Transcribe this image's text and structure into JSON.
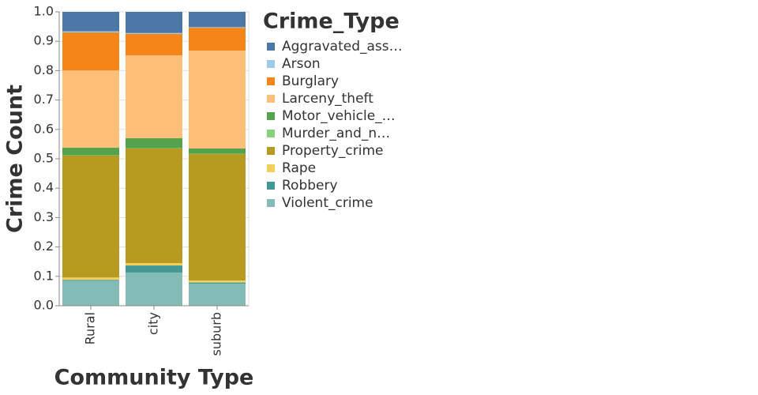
{
  "chart_data": {
    "type": "bar",
    "stacked": true,
    "x_label": "Community Type",
    "y_label": "Crime Count",
    "legend_title": "Crime_Type",
    "legend_position": "right",
    "grid": true,
    "categories": [
      "Rural",
      "city",
      "suburb"
    ],
    "ylim": [
      0,
      1
    ],
    "yticks": [
      {
        "value": 0,
        "label": "0.0"
      },
      0.1,
      0.2,
      0.3,
      0.4,
      0.5,
      0.6,
      0.7,
      0.8,
      0.9,
      {
        "value": 1,
        "label": "1.0"
      }
    ],
    "series": [
      {
        "name": "Aggravated_ass…",
        "color": "#4c78a8",
        "values": [
          0.066,
          0.072,
          0.052
        ]
      },
      {
        "name": "Arson",
        "color": "#9ecae9",
        "values": [
          0.004,
          0.003,
          0.002
        ]
      },
      {
        "name": "Burglary",
        "color": "#f58518",
        "values": [
          0.129,
          0.073,
          0.078
        ]
      },
      {
        "name": "Larceny_theft",
        "color": "#ffbf79",
        "values": [
          0.263,
          0.282,
          0.333
        ]
      },
      {
        "name": "Motor_vehicle_…",
        "color": "#54a24b",
        "values": [
          0.026,
          0.034,
          0.018
        ]
      },
      {
        "name": "Murder_and_n…",
        "color": "#88d27a",
        "values": [
          0.001,
          0.001,
          0.001
        ]
      },
      {
        "name": "Property_crime",
        "color": "#b79a20",
        "values": [
          0.415,
          0.39,
          0.43
        ]
      },
      {
        "name": "Rape",
        "color": "#f2cf5b",
        "values": [
          0.008,
          0.008,
          0.007
        ]
      },
      {
        "name": "Robbery",
        "color": "#439894",
        "values": [
          0.003,
          0.024,
          0.004
        ]
      },
      {
        "name": "Violent_crime",
        "color": "#83bcb6",
        "values": [
          0.085,
          0.113,
          0.075
        ]
      }
    ]
  }
}
